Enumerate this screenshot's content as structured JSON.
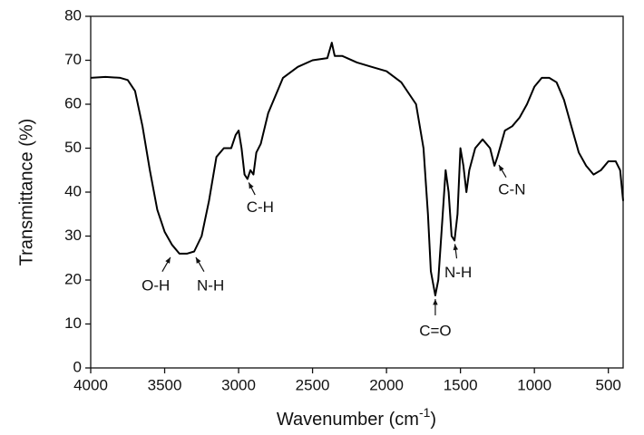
{
  "chart_data": {
    "type": "line",
    "x_label": [
      "Wavenumber (cm",
      "-1",
      ")"
    ],
    "y_label": "Transmittance (%)",
    "xlim": [
      4000,
      400
    ],
    "xticks": [
      4000,
      3500,
      3000,
      2500,
      2000,
      1500,
      1000,
      500
    ],
    "ylim": [
      0,
      80
    ],
    "yticks": [
      0,
      10,
      20,
      30,
      40,
      50,
      60,
      70,
      80
    ],
    "color": "#000000",
    "x": [
      4000,
      3900,
      3800,
      3750,
      3700,
      3650,
      3600,
      3550,
      3500,
      3450,
      3400,
      3350,
      3300,
      3250,
      3200,
      3150,
      3100,
      3050,
      3020,
      3000,
      2980,
      2960,
      2940,
      2920,
      2900,
      2880,
      2850,
      2800,
      2700,
      2600,
      2500,
      2400,
      2370,
      2350,
      2300,
      2200,
      2100,
      2000,
      1900,
      1800,
      1750,
      1720,
      1700,
      1670,
      1650,
      1620,
      1600,
      1580,
      1560,
      1540,
      1520,
      1500,
      1480,
      1460,
      1440,
      1400,
      1350,
      1300,
      1270,
      1250,
      1200,
      1150,
      1100,
      1050,
      1000,
      950,
      900,
      850,
      800,
      750,
      700,
      650,
      600,
      550,
      500,
      450,
      420,
      400
    ],
    "values": [
      66,
      66.2,
      66,
      65.5,
      63,
      55,
      45,
      36,
      31,
      28,
      26,
      26,
      26.5,
      30,
      38,
      48,
      50,
      50,
      53,
      54,
      50,
      44,
      43,
      45,
      44,
      49,
      51,
      58,
      66,
      68.5,
      70,
      70.5,
      74,
      71,
      71,
      69.5,
      68.5,
      67.5,
      65,
      60,
      50,
      35,
      22,
      16.5,
      20,
      35,
      45,
      40,
      30,
      29,
      35,
      50,
      46,
      40,
      45,
      50,
      52,
      50,
      46,
      48,
      54,
      55,
      57,
      60,
      64,
      66,
      66,
      65,
      61,
      55,
      49,
      46,
      44,
      45,
      47,
      47,
      45,
      38
    ],
    "annotations": [
      {
        "text": "O-H",
        "x": 3450,
        "y": 26
      },
      {
        "text": "N-H",
        "x": 3300,
        "y": 26
      },
      {
        "text": "C-H",
        "x": 2940,
        "y": 43
      },
      {
        "text": "C=O",
        "x": 1670,
        "y": 16.5
      },
      {
        "text": "N-H",
        "x": 1540,
        "y": 29
      },
      {
        "text": "C-N",
        "x": 1250,
        "y": 47
      }
    ]
  }
}
